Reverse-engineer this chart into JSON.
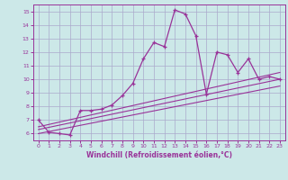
{
  "xlabel": "Windchill (Refroidissement éolien,°C)",
  "background_color": "#cce8e8",
  "grid_color": "#aaaacc",
  "line_color": "#993399",
  "xlim": [
    -0.5,
    23.5
  ],
  "ylim": [
    5.5,
    15.5
  ],
  "xticks": [
    0,
    1,
    2,
    3,
    4,
    5,
    6,
    7,
    8,
    9,
    10,
    11,
    12,
    13,
    14,
    15,
    16,
    17,
    18,
    19,
    20,
    21,
    22,
    23
  ],
  "yticks": [
    6,
    7,
    8,
    9,
    10,
    11,
    12,
    13,
    14,
    15
  ],
  "series1": {
    "x": [
      0,
      1,
      2,
      3,
      4,
      5,
      6,
      7,
      8,
      9,
      10,
      11,
      12,
      13,
      14,
      15,
      16,
      17,
      18,
      19,
      20,
      21,
      22,
      23
    ],
    "y": [
      7.0,
      6.1,
      6.0,
      5.9,
      7.7,
      7.7,
      7.8,
      8.1,
      8.8,
      9.7,
      11.5,
      12.7,
      12.4,
      15.1,
      14.8,
      13.2,
      8.9,
      12.0,
      11.8,
      10.5,
      11.5,
      10.0,
      10.2,
      10.0
    ]
  },
  "series2": {
    "x": [
      0,
      23
    ],
    "y": [
      6.3,
      10.0
    ]
  },
  "series3": {
    "x": [
      0,
      23
    ],
    "y": [
      6.0,
      9.5
    ]
  },
  "series4": {
    "x": [
      0,
      23
    ],
    "y": [
      6.5,
      10.5
    ]
  }
}
